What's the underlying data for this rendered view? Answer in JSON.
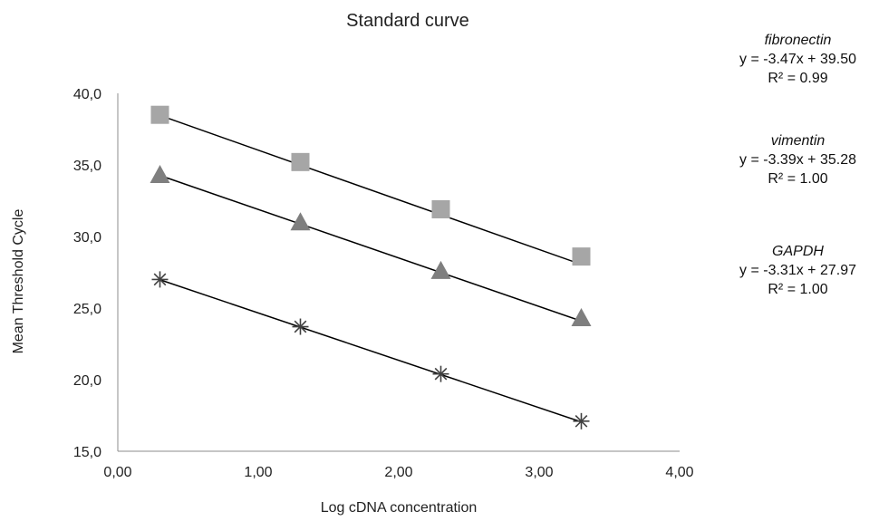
{
  "chart_data": {
    "type": "scatter",
    "title": "Standard curve",
    "xlabel": "Log cDNA concentration",
    "ylabel": "Mean Threshold Cycle",
    "xlim": [
      0,
      4
    ],
    "ylim": [
      15,
      40
    ],
    "x_ticks": [
      "0,00",
      "1,00",
      "2,00",
      "3,00",
      "4,00"
    ],
    "y_ticks": [
      "15,0",
      "20,0",
      "25,0",
      "30,0",
      "35,0",
      "40,0"
    ],
    "grid": false,
    "series": [
      {
        "name": "fibronectin",
        "marker": "square",
        "color": "#a6a6a6",
        "x": [
          0.3,
          1.3,
          2.3,
          3.3
        ],
        "y": [
          38.5,
          35.2,
          31.9,
          28.6
        ],
        "trendline": {
          "slope": -3.47,
          "intercept": 39.5,
          "equation": "y = -3.47x + 39.50",
          "r2": "R² = 0.99"
        }
      },
      {
        "name": "vimentin",
        "marker": "triangle",
        "color": "#7f7f7f",
        "x": [
          0.3,
          1.3,
          2.3,
          3.3
        ],
        "y": [
          34.3,
          31.0,
          27.6,
          24.3
        ],
        "trendline": {
          "slope": -3.39,
          "intercept": 35.28,
          "equation": "y = -3.39x + 35.28",
          "r2": "R² = 1.00"
        }
      },
      {
        "name": "GAPDH",
        "marker": "asterisk",
        "color": "#404040",
        "x": [
          0.3,
          1.3,
          2.3,
          3.3
        ],
        "y": [
          27.0,
          23.7,
          20.4,
          17.1
        ],
        "trendline": {
          "slope": -3.31,
          "intercept": 27.97,
          "equation": "y = -3.31x + 27.97",
          "r2": "R² = 1.00"
        }
      }
    ]
  }
}
